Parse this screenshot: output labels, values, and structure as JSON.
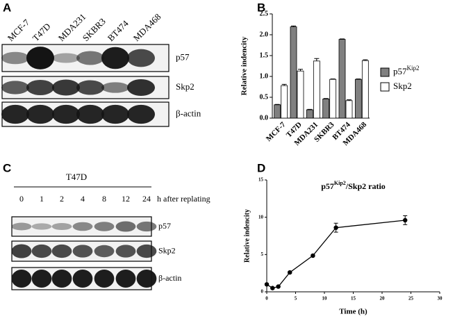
{
  "panels": {
    "a": "A",
    "b": "B",
    "c": "C",
    "d": "D"
  },
  "blot_a": {
    "lanes": [
      "MCF-7",
      "T47D",
      "MDA231",
      "SKBR3",
      "BT474",
      "MDA468"
    ],
    "rows": [
      "p57",
      "Skp2",
      "β-actin"
    ]
  },
  "blot_c": {
    "group": "T47D",
    "lanes": [
      "0",
      "1",
      "2",
      "4",
      "8",
      "12",
      "24"
    ],
    "lane_caption": "h after replating",
    "rows": [
      "p57",
      "Skp2",
      "β-actin"
    ]
  },
  "chart_data": [
    {
      "type": "bar",
      "y_label": "Relative indencity",
      "categories": [
        "MCF-7",
        "T47D",
        "MDA231",
        "SKBR3",
        "BT474",
        "MDA468"
      ],
      "series": [
        {
          "name": "p57",
          "name_superscript": "Kip2",
          "color": "#808080",
          "values": [
            0.32,
            2.19,
            0.2,
            0.46,
            1.89,
            0.93
          ],
          "errors": [
            0.01,
            0.02,
            0.01,
            0.01,
            0.01,
            0.01
          ]
        },
        {
          "name": "Skp2",
          "color": "#ffffff",
          "values": [
            0.78,
            1.13,
            1.37,
            0.93,
            0.42,
            1.38
          ],
          "errors": [
            0.03,
            0.04,
            0.06,
            0.01,
            0.02,
            0.02
          ]
        }
      ],
      "ylim": [
        0,
        2.5
      ],
      "yticks": [
        {
          "value": 0,
          "label": "0.0"
        },
        0.5,
        {
          "value": 1,
          "label": "1.0"
        },
        1.5,
        {
          "value": 2,
          "label": "2.0"
        },
        2.5
      ],
      "legend": "right"
    },
    {
      "type": "line",
      "title": {
        "text": "p57",
        "superscript": "Kip2",
        "rest": "/Skp2 ratio"
      },
      "x_label": "Time (h)",
      "y_label": "Relative indencity",
      "x": [
        0,
        1,
        2,
        4,
        8,
        12,
        24
      ],
      "values": [
        1.0,
        0.5,
        0.7,
        2.6,
        4.85,
        8.6,
        9.6
      ],
      "errors": [
        0.1,
        0.1,
        0.1,
        0.1,
        0.1,
        0.6,
        0.6
      ],
      "color": "#000000",
      "xlim": [
        0,
        30
      ],
      "xticks": [
        0,
        5,
        10,
        15,
        20,
        25,
        30
      ],
      "ylim": [
        0,
        15
      ],
      "yticks": [
        0,
        5,
        10,
        15
      ]
    }
  ]
}
